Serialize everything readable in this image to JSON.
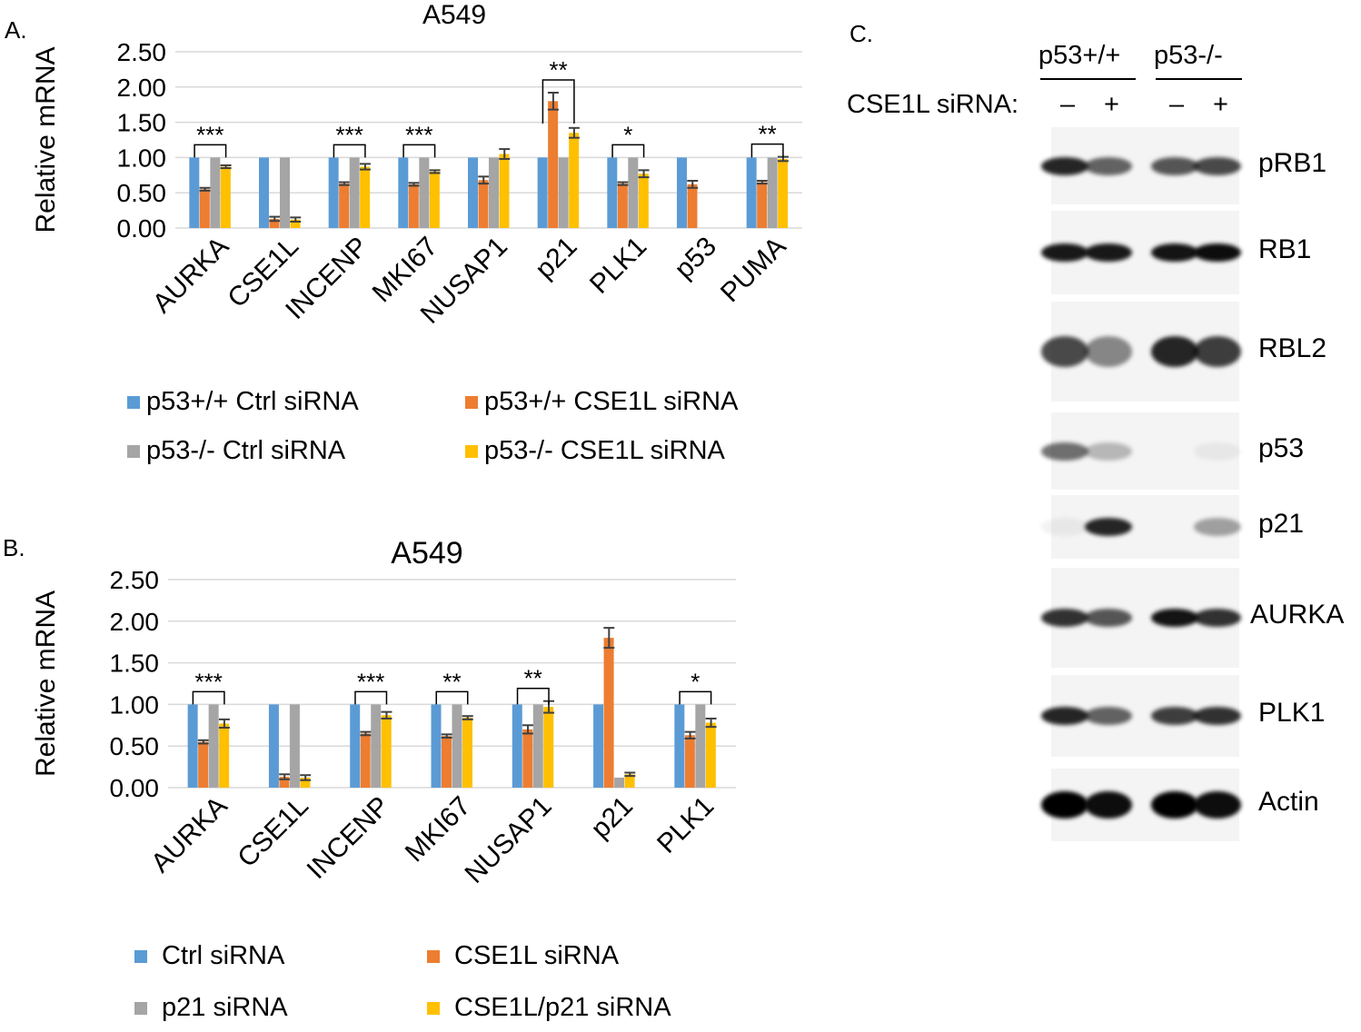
{
  "chart_data": [
    {
      "type": "bar",
      "panel_letter": "A.",
      "title": "A549",
      "ylabel": "Relative mRNA",
      "ylim": [
        0,
        2.5
      ],
      "yticks": [
        "0.00",
        "0.50",
        "1.00",
        "1.50",
        "2.00",
        "2.50"
      ],
      "grid": true,
      "legend_position": "bottom",
      "categories": [
        "AURKA",
        "CSE1L",
        "INCENP",
        "MKI67",
        "NUSAP1",
        "p21",
        "PLK1",
        "p53",
        "PUMA"
      ],
      "series": [
        {
          "name": "p53+/+ Ctrl siRNA",
          "color": "#5B9BD5",
          "values": [
            1.0,
            1.0,
            1.0,
            1.0,
            1.0,
            1.0,
            1.0,
            1.0,
            1.0
          ],
          "errors": [
            0,
            0,
            0,
            0,
            0,
            0,
            0,
            0,
            0
          ]
        },
        {
          "name": "p53+/+ CSE1L siRNA",
          "color": "#ED7D31",
          "values": [
            0.55,
            0.13,
            0.63,
            0.62,
            0.68,
            1.8,
            0.63,
            0.62,
            0.65
          ],
          "errors": [
            0.02,
            0.03,
            0.02,
            0.02,
            0.05,
            0.12,
            0.02,
            0.05,
            0.02
          ]
        },
        {
          "name": "p53-/- Ctrl siRNA",
          "color": "#A5A5A5",
          "values": [
            1.0,
            1.0,
            1.0,
            1.0,
            1.0,
            1.0,
            1.0,
            null,
            1.0
          ],
          "errors": [
            0,
            0,
            0,
            0,
            0,
            0,
            0,
            0,
            0
          ]
        },
        {
          "name": "p53-/- CSE1L siRNA",
          "color": "#FFC000",
          "values": [
            0.87,
            0.12,
            0.87,
            0.8,
            1.05,
            1.35,
            0.77,
            null,
            0.98
          ],
          "errors": [
            0.02,
            0.03,
            0.04,
            0.02,
            0.07,
            0.07,
            0.05,
            0,
            0.03
          ]
        }
      ],
      "significance": [
        {
          "category": "AURKA",
          "label": "***"
        },
        {
          "category": "INCENP",
          "label": "***"
        },
        {
          "category": "MKI67",
          "label": "***"
        },
        {
          "category": "p21",
          "label": "**"
        },
        {
          "category": "PLK1",
          "label": "*"
        },
        {
          "category": "PUMA",
          "label": "**"
        }
      ]
    },
    {
      "type": "bar",
      "panel_letter": "B.",
      "title": "A549",
      "ylabel": "Relative mRNA",
      "ylim": [
        0,
        2.5
      ],
      "yticks": [
        "0.00",
        "0.50",
        "1.00",
        "1.50",
        "2.00",
        "2.50"
      ],
      "grid": true,
      "legend_position": "bottom",
      "categories": [
        "AURKA",
        "CSE1L",
        "INCENP",
        "MKI67",
        "NUSAP1",
        "p21",
        "PLK1"
      ],
      "series": [
        {
          "name": "Ctrl siRNA",
          "color": "#5B9BD5",
          "values": [
            1.0,
            1.0,
            1.0,
            1.0,
            1.0,
            1.0,
            1.0
          ],
          "errors": [
            0,
            0,
            0,
            0,
            0,
            0,
            0
          ]
        },
        {
          "name": "CSE1L siRNA",
          "color": "#ED7D31",
          "values": [
            0.55,
            0.13,
            0.65,
            0.62,
            0.7,
            1.8,
            0.63
          ],
          "errors": [
            0.02,
            0.03,
            0.02,
            0.02,
            0.05,
            0.12,
            0.04
          ]
        },
        {
          "name": "p21 siRNA",
          "color": "#A5A5A5",
          "values": [
            1.0,
            1.0,
            1.0,
            1.0,
            1.0,
            0.12,
            1.0
          ],
          "errors": [
            0,
            0,
            0,
            0,
            0,
            0,
            0
          ]
        },
        {
          "name": "CSE1L/p21 siRNA",
          "color": "#FFC000",
          "values": [
            0.77,
            0.12,
            0.87,
            0.84,
            0.97,
            0.16,
            0.78
          ],
          "errors": [
            0.05,
            0.03,
            0.04,
            0.02,
            0.07,
            0.02,
            0.05
          ]
        }
      ],
      "significance": [
        {
          "category": "AURKA",
          "label": "***"
        },
        {
          "category": "INCENP",
          "label": "***"
        },
        {
          "category": "MKI67",
          "label": "**"
        },
        {
          "category": "NUSAP1",
          "label": "**"
        },
        {
          "category": "PLK1",
          "label": "*"
        }
      ]
    }
  ],
  "blot": {
    "panel_letter": "C.",
    "groups": [
      "p53+/+",
      "p53-/-"
    ],
    "row_label": "CSE1L siRNA:",
    "lanes": [
      "–",
      "+",
      "–",
      "+"
    ],
    "proteins": [
      "pRB1",
      "RB1",
      "RBL2",
      "p53",
      "p21",
      "AURKA",
      "PLK1",
      "Actin"
    ],
    "band_intensity": [
      [
        0.85,
        0.6,
        0.65,
        0.7
      ],
      [
        0.9,
        0.9,
        0.92,
        0.95
      ],
      [
        0.7,
        0.45,
        0.85,
        0.75
      ],
      [
        0.55,
        0.25,
        0.0,
        0.05
      ],
      [
        0.05,
        0.85,
        0.0,
        0.35
      ],
      [
        0.8,
        0.65,
        0.92,
        0.8
      ],
      [
        0.85,
        0.6,
        0.75,
        0.8
      ],
      [
        1.0,
        0.95,
        1.0,
        0.95
      ]
    ]
  }
}
